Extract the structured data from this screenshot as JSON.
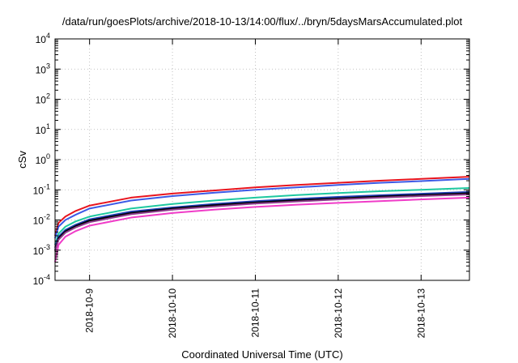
{
  "chart_data": {
    "type": "line",
    "title": "/data/run/goesPlots/archive/2018-10-13/14:00/flux/../bryn/5daysMarsAccumulated.plot",
    "xlabel": "Coordinated Universal Time (UTC)",
    "ylabel": "cSv",
    "yscale": "log",
    "ylim": [
      0.0001,
      10000
    ],
    "xlim": [
      "2018-10-08T14:00",
      "2018-10-13T14:00"
    ],
    "grid": true,
    "x_ticks": [
      "2018-10-9",
      "2018-10-10",
      "2018-10-11",
      "2018-10-12",
      "2018-10-13"
    ],
    "y_ticks": [
      {
        "base": "10",
        "exp": "-4"
      },
      {
        "base": "10",
        "exp": "-3"
      },
      {
        "base": "10",
        "exp": "-2"
      },
      {
        "base": "10",
        "exp": "-1"
      },
      {
        "base": "10",
        "exp": "0"
      },
      {
        "base": "10",
        "exp": "1"
      },
      {
        "base": "10",
        "exp": "2"
      },
      {
        "base": "10",
        "exp": "3"
      },
      {
        "base": "10",
        "exp": "4"
      }
    ],
    "x": [
      "2018-10-08T14:00",
      "2018-10-08T15:00",
      "2018-10-08T17:00",
      "2018-10-08T20:00",
      "2018-10-09T00:00",
      "2018-10-09T12:00",
      "2018-10-10T00:00",
      "2018-10-10T12:00",
      "2018-10-11T00:00",
      "2018-10-11T12:00",
      "2018-10-12T00:00",
      "2018-10-12T12:00",
      "2018-10-13T00:00",
      "2018-10-13T14:00"
    ],
    "series": [
      {
        "color": "#e8141e",
        "values": [
          0.003,
          0.008,
          0.013,
          0.02,
          0.03,
          0.055,
          0.075,
          0.095,
          0.12,
          0.145,
          0.17,
          0.2,
          0.23,
          0.27
        ]
      },
      {
        "color": "#3c5ae6",
        "values": [
          0.0025,
          0.006,
          0.01,
          0.015,
          0.024,
          0.044,
          0.062,
          0.08,
          0.1,
          0.12,
          0.145,
          0.17,
          0.195,
          0.23
        ]
      },
      {
        "color": "#1ec8a0",
        "values": [
          0.0015,
          0.0035,
          0.006,
          0.009,
          0.013,
          0.024,
          0.034,
          0.044,
          0.055,
          0.067,
          0.078,
          0.09,
          0.1,
          0.115
        ]
      },
      {
        "color": "#1e3cb4",
        "values": [
          0.0012,
          0.0028,
          0.0047,
          0.007,
          0.0105,
          0.019,
          0.026,
          0.034,
          0.042,
          0.05,
          0.058,
          0.066,
          0.074,
          0.085
        ]
      },
      {
        "color": "#000000",
        "values": [
          0.001,
          0.0025,
          0.0042,
          0.0063,
          0.0095,
          0.017,
          0.024,
          0.031,
          0.038,
          0.045,
          0.052,
          0.06,
          0.067,
          0.077
        ]
      },
      {
        "color": "#8c3c8c",
        "values": [
          0.0009,
          0.0022,
          0.0038,
          0.0057,
          0.0085,
          0.0155,
          0.022,
          0.028,
          0.035,
          0.041,
          0.048,
          0.055,
          0.062,
          0.07
        ]
      },
      {
        "color": "#f03cc8",
        "values": [
          0.0004,
          0.0015,
          0.0028,
          0.0043,
          0.0065,
          0.012,
          0.017,
          0.022,
          0.027,
          0.032,
          0.037,
          0.042,
          0.048,
          0.055
        ]
      }
    ]
  }
}
